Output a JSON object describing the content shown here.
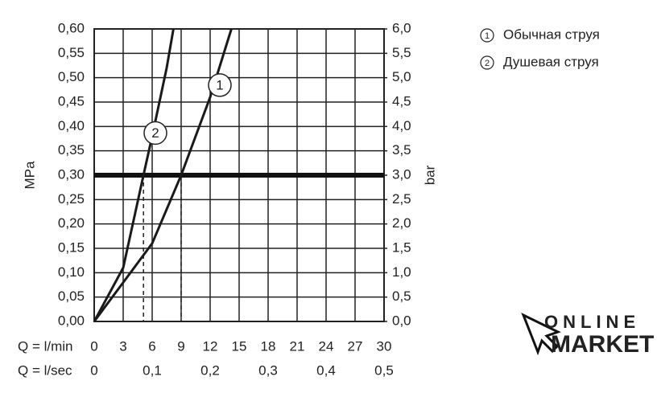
{
  "chart_data": {
    "type": "line",
    "y_label": "MPa",
    "y2_label": "bar",
    "x_label": "Q = l/min",
    "x2_label": "Q = l/sec",
    "series": [
      {
        "name": "Обычная струя",
        "label": "1",
        "color": "#1a1a1a",
        "x": [
          0,
          3,
          6,
          9,
          12,
          14.2
        ],
        "values": [
          0,
          0.08,
          0.16,
          0.3,
          0.46,
          0.6
        ]
      },
      {
        "name": "Душевая струя",
        "label": "2",
        "color": "#1a1a1a",
        "x": [
          0,
          3,
          5.1,
          6,
          7.5,
          8.2
        ],
        "values": [
          0,
          0.11,
          0.3,
          0.38,
          0.52,
          0.6
        ]
      }
    ],
    "reference": {
      "y": 0.3,
      "x": [
        5.1,
        9
      ]
    },
    "xlim": [
      0,
      30
    ],
    "xticks": [
      0,
      3,
      6,
      9,
      12,
      15,
      18,
      21,
      24,
      27,
      30
    ],
    "x2lim": [
      0,
      0.5
    ],
    "x2ticks": [
      0,
      {
        "value": 0.1,
        "label": "0,1"
      },
      {
        "value": 0.2,
        "label": "0,2"
      },
      {
        "value": 0.3,
        "label": "0,3"
      },
      {
        "value": 0.4,
        "label": "0,4"
      },
      {
        "value": 0.5,
        "label": "0,5"
      }
    ],
    "ylim": [
      0,
      0.6
    ],
    "yticks": [
      {
        "value": 0,
        "label": "0,00"
      },
      {
        "value": 0.05,
        "label": "0,05"
      },
      {
        "value": 0.1,
        "label": "0,10"
      },
      {
        "value": 0.15,
        "label": "0,15"
      },
      {
        "value": 0.2,
        "label": "0,20"
      },
      {
        "value": 0.25,
        "label": "0,25"
      },
      {
        "value": 0.3,
        "label": "0,30"
      },
      {
        "value": 0.35,
        "label": "0,35"
      },
      {
        "value": 0.4,
        "label": "0,40"
      },
      {
        "value": 0.45,
        "label": "0,45"
      },
      {
        "value": 0.5,
        "label": "0,50"
      },
      {
        "value": 0.55,
        "label": "0,55"
      },
      {
        "value": 0.6,
        "label": "0,60"
      }
    ],
    "y2lim": [
      0,
      6
    ],
    "y2ticks": [
      {
        "value": 0,
        "label": "0,0"
      },
      {
        "value": 0.5,
        "label": "0,5"
      },
      {
        "value": 1,
        "label": "1,0"
      },
      {
        "value": 1.5,
        "label": "1,5"
      },
      {
        "value": 2,
        "label": "2,0"
      },
      {
        "value": 2.5,
        "label": "2,5"
      },
      {
        "value": 3,
        "label": "3,0"
      },
      {
        "value": 3.5,
        "label": "3,5"
      },
      {
        "value": 4,
        "label": "4,0"
      },
      {
        "value": 4.5,
        "label": "4,5"
      },
      {
        "value": 5,
        "label": "5,0"
      },
      {
        "value": 5.5,
        "label": "5,5"
      },
      {
        "value": 6,
        "label": "6,0"
      }
    ],
    "grid": true
  },
  "watermark": [
    "ONLINE",
    "MARKET"
  ]
}
